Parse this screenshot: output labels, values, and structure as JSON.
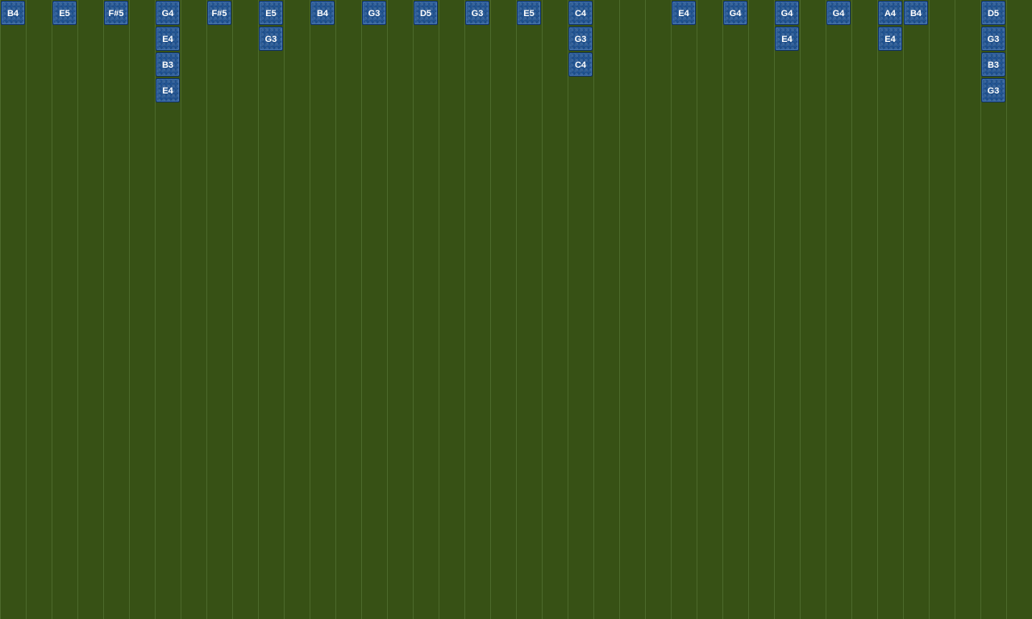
{
  "colors": {
    "background": "#375115",
    "grid_line": "#4d6a2c",
    "note_fill": "#1b4f8f",
    "note_border": "#0d2f66",
    "note_text": "#ffffff"
  },
  "grid": {
    "columns": 40
  },
  "notes": [
    {
      "col": 0,
      "row": 0,
      "label": "B4"
    },
    {
      "col": 2,
      "row": 0,
      "label": "E5"
    },
    {
      "col": 4,
      "row": 0,
      "label": "F#5"
    },
    {
      "col": 6,
      "row": 0,
      "label": "G4"
    },
    {
      "col": 6,
      "row": 1,
      "label": "E4"
    },
    {
      "col": 6,
      "row": 2,
      "label": "B3"
    },
    {
      "col": 6,
      "row": 3,
      "label": "E4"
    },
    {
      "col": 8,
      "row": 0,
      "label": "F#5"
    },
    {
      "col": 10,
      "row": 0,
      "label": "E5"
    },
    {
      "col": 10,
      "row": 1,
      "label": "G3"
    },
    {
      "col": 12,
      "row": 0,
      "label": "B4"
    },
    {
      "col": 14,
      "row": 0,
      "label": "G3"
    },
    {
      "col": 16,
      "row": 0,
      "label": "D5"
    },
    {
      "col": 18,
      "row": 0,
      "label": "G3"
    },
    {
      "col": 20,
      "row": 0,
      "label": "E5"
    },
    {
      "col": 22,
      "row": 0,
      "label": "C4"
    },
    {
      "col": 22,
      "row": 1,
      "label": "G3"
    },
    {
      "col": 22,
      "row": 2,
      "label": "C4"
    },
    {
      "col": 26,
      "row": 0,
      "label": "E4"
    },
    {
      "col": 28,
      "row": 0,
      "label": "G4"
    },
    {
      "col": 30,
      "row": 0,
      "label": "G4"
    },
    {
      "col": 30,
      "row": 1,
      "label": "E4"
    },
    {
      "col": 32,
      "row": 0,
      "label": "G4"
    },
    {
      "col": 34,
      "row": 0,
      "label": "A4"
    },
    {
      "col": 34,
      "row": 1,
      "label": "E4"
    },
    {
      "col": 35,
      "row": 0,
      "label": "B4"
    },
    {
      "col": 38,
      "row": 0,
      "label": "D5"
    },
    {
      "col": 38,
      "row": 1,
      "label": "G3"
    },
    {
      "col": 38,
      "row": 2,
      "label": "B3"
    },
    {
      "col": 38,
      "row": 3,
      "label": "G3"
    }
  ]
}
